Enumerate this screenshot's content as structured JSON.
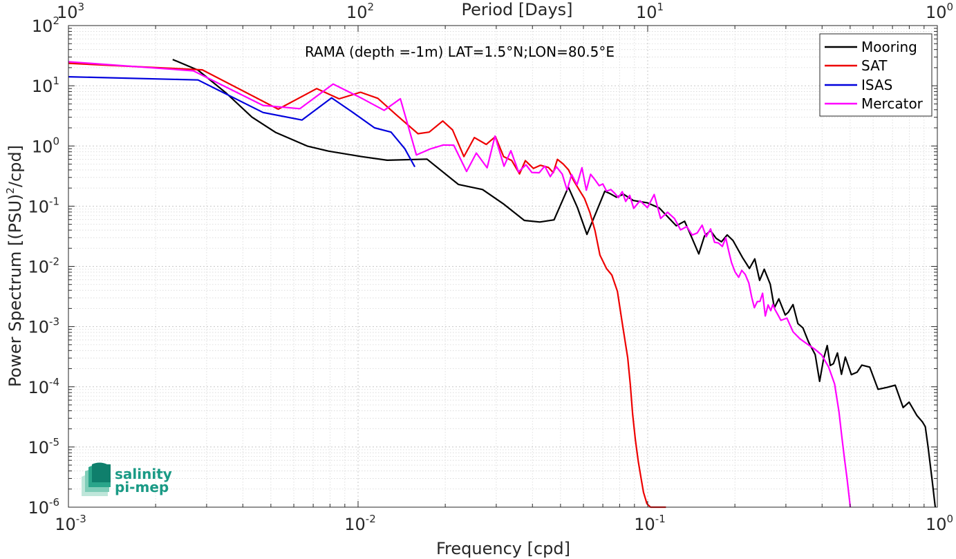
{
  "chart_data": {
    "type": "line",
    "annotation": "RAMA (depth =-1m) LAT=1.5°N;LON=80.5°E",
    "xlabel": "Frequency [cpd]",
    "ylabel_parts": [
      "Power Spectrum [(PSU)",
      "2",
      "/cpd]"
    ],
    "top_xlabel": "Period [Days]",
    "x_scale": "log",
    "y_scale": "log",
    "xlim": [
      0.001,
      1
    ],
    "ylim": [
      1e-06,
      100
    ],
    "grid": true,
    "legend_position": "top-right",
    "x_ticks": [
      {
        "base": "10",
        "exp": "-3"
      },
      {
        "base": "10",
        "exp": "-2"
      },
      {
        "base": "10",
        "exp": "-1"
      },
      {
        "base": "10",
        "exp": "0"
      }
    ],
    "top_ticks": [
      {
        "base": "10",
        "exp": "3"
      },
      {
        "base": "10",
        "exp": "2"
      },
      {
        "base": "10",
        "exp": "1"
      },
      {
        "base": "10",
        "exp": "0"
      }
    ],
    "y_ticks": [
      {
        "base": "10",
        "exp": "-6"
      },
      {
        "base": "10",
        "exp": "-5"
      },
      {
        "base": "10",
        "exp": "-4"
      },
      {
        "base": "10",
        "exp": "-3"
      },
      {
        "base": "10",
        "exp": "-2"
      },
      {
        "base": "10",
        "exp": "-1"
      },
      {
        "base": "10",
        "exp": "0"
      },
      {
        "base": "10",
        "exp": "1"
      },
      {
        "base": "10",
        "exp": "2"
      }
    ],
    "series": [
      {
        "name": "Mooring",
        "color": "#000000",
        "x": [
          0.00229,
          0.0028,
          0.0035,
          0.0043,
          0.0052,
          0.0067,
          0.0079,
          0.0103,
          0.0126,
          0.0173,
          0.0222,
          0.0269,
          0.0317,
          0.0375,
          0.0424,
          0.0475,
          0.0532,
          0.0572,
          0.0617,
          0.0661,
          0.0711,
          0.0743,
          0.078,
          0.0825,
          0.0892,
          0.0995,
          0.1097,
          0.1255,
          0.1341,
          0.1414,
          0.1501,
          0.157,
          0.1647,
          0.1725,
          0.1797,
          0.1881,
          0.197,
          0.2125,
          0.2245,
          0.2343,
          0.2434,
          0.2526,
          0.2649,
          0.2737,
          0.2837,
          0.2985,
          0.3058,
          0.3175,
          0.33,
          0.3436,
          0.3594,
          0.3787,
          0.3923,
          0.4051,
          0.4166,
          0.4268,
          0.4377,
          0.4519,
          0.4666,
          0.4813,
          0.5049,
          0.5282,
          0.5488,
          0.5843,
          0.6239,
          0.6691,
          0.7154,
          0.7617,
          0.7993,
          0.8502,
          0.8884,
          0.9087,
          0.9287,
          0.9601,
          0.9834
        ],
        "y": [
          27.3,
          18.2,
          7.61,
          3.02,
          1.67,
          0.99,
          0.822,
          0.665,
          0.58,
          0.604,
          0.23,
          0.189,
          0.11,
          0.058,
          0.0546,
          0.0592,
          0.207,
          0.095,
          0.034,
          0.0755,
          0.177,
          0.161,
          0.141,
          0.158,
          0.124,
          0.114,
          0.0932,
          0.0472,
          0.0562,
          0.0315,
          0.0161,
          0.0319,
          0.0392,
          0.0291,
          0.0256,
          0.0333,
          0.0269,
          0.014,
          0.00924,
          0.0133,
          0.00585,
          0.00894,
          0.00505,
          0.00205,
          0.00289,
          0.00156,
          0.00173,
          0.00232,
          0.00112,
          0.00095,
          0.00055,
          0.000342,
          0.000123,
          0.000297,
          0.000484,
          0.000226,
          0.000242,
          0.000365,
          0.000161,
          0.000311,
          0.000159,
          0.000175,
          0.000229,
          0.000212,
          9.09e-05,
          9.74e-05,
          0.000106,
          4.52e-05,
          5.55e-05,
          3.33e-05,
          2.6e-05,
          2.17e-05,
          1.02e-05,
          2.73e-06,
          1e-06
        ]
      },
      {
        "name": "SAT",
        "color": "#ee0000",
        "x": [
          0.001,
          0.0029,
          0.0053,
          0.0072,
          0.0086,
          0.0102,
          0.0117,
          0.0135,
          0.0161,
          0.0176,
          0.0196,
          0.0212,
          0.0232,
          0.0252,
          0.0277,
          0.0298,
          0.0318,
          0.0339,
          0.0361,
          0.0378,
          0.0403,
          0.0426,
          0.0454,
          0.0472,
          0.0488,
          0.0511,
          0.0533,
          0.0554,
          0.0579,
          0.0605,
          0.0632,
          0.0658,
          0.0684,
          0.0721,
          0.0752,
          0.0786,
          0.0817,
          0.0853,
          0.0871,
          0.0887,
          0.0907,
          0.0928,
          0.0948,
          0.0967,
          0.0994,
          0.1023,
          0.1052,
          0.1082,
          0.1112,
          0.1141,
          0.1156
        ],
        "y": [
          23.6,
          18.4,
          4.09,
          8.98,
          6.07,
          7.8,
          6.19,
          3.34,
          1.6,
          1.7,
          2.6,
          1.85,
          0.666,
          1.38,
          1.06,
          1.43,
          0.666,
          0.575,
          0.343,
          0.57,
          0.424,
          0.478,
          0.44,
          0.36,
          0.599,
          0.501,
          0.4,
          0.271,
          0.189,
          0.134,
          0.0777,
          0.0392,
          0.0154,
          0.00916,
          0.00719,
          0.00384,
          0.00114,
          0.000302,
          0.000107,
          3.51e-05,
          1.31e-05,
          5.71e-06,
          3.08e-06,
          1.77e-06,
          1.14e-06,
          1e-06,
          1e-06,
          1e-06,
          1e-06,
          1e-06,
          1e-06
        ]
      },
      {
        "name": "ISAS",
        "color": "#0000dd",
        "x": [
          0.001,
          0.0028,
          0.0047,
          0.0064,
          0.0081,
          0.0096,
          0.0114,
          0.013,
          0.0145,
          0.0157
        ],
        "y": [
          14.1,
          12.5,
          3.6,
          2.7,
          6.3,
          3.6,
          2.0,
          1.7,
          0.9,
          0.45
        ]
      },
      {
        "name": "Mercator",
        "color": "#ff00ff",
        "x": [
          0.001,
          0.0027,
          0.0047,
          0.0063,
          0.0082,
          0.0103,
          0.0123,
          0.014,
          0.0159,
          0.0177,
          0.0197,
          0.0214,
          0.0237,
          0.0256,
          0.0279,
          0.0297,
          0.0319,
          0.0337,
          0.0358,
          0.038,
          0.0398,
          0.0422,
          0.0441,
          0.0461,
          0.0484,
          0.0507,
          0.0527,
          0.0546,
          0.057,
          0.0593,
          0.0614,
          0.0635,
          0.0657,
          0.068,
          0.07,
          0.0721,
          0.0746,
          0.0769,
          0.0792,
          0.0817,
          0.0839,
          0.0867,
          0.0895,
          0.0941,
          0.0998,
          0.1053,
          0.1108,
          0.1171,
          0.1237,
          0.1299,
          0.1365,
          0.1424,
          0.1482,
          0.1541,
          0.1592,
          0.1649,
          0.1701,
          0.1754,
          0.181,
          0.186,
          0.1905,
          0.1948,
          0.2003,
          0.2061,
          0.2113,
          0.2171,
          0.2235,
          0.2286,
          0.2335,
          0.2389,
          0.2441,
          0.2492,
          0.2546,
          0.2604,
          0.2659,
          0.2704,
          0.2753,
          0.2818,
          0.2883,
          0.3025,
          0.3175,
          0.3352,
          0.3556,
          0.3766,
          0.3985,
          0.4212,
          0.442,
          0.4574,
          0.4685,
          0.4785,
          0.4875,
          0.4944,
          0.5006
        ],
        "y": [
          25.1,
          17.7,
          4.71,
          4.16,
          10.7,
          6.18,
          3.91,
          6.09,
          0.709,
          0.89,
          1.04,
          1.03,
          0.378,
          0.762,
          0.434,
          1.46,
          0.461,
          0.834,
          0.371,
          0.487,
          0.363,
          0.359,
          0.463,
          0.31,
          0.451,
          0.34,
          0.185,
          0.335,
          0.227,
          0.436,
          0.184,
          0.339,
          0.276,
          0.219,
          0.234,
          0.178,
          0.189,
          0.164,
          0.139,
          0.174,
          0.12,
          0.151,
          0.0918,
          0.123,
          0.0944,
          0.156,
          0.0626,
          0.0791,
          0.0624,
          0.0404,
          0.0458,
          0.0332,
          0.0358,
          0.0483,
          0.0311,
          0.0419,
          0.0251,
          0.0245,
          0.0214,
          0.0299,
          0.0177,
          0.0115,
          0.00808,
          0.00659,
          0.00858,
          0.00734,
          0.00531,
          0.00305,
          0.00206,
          0.0026,
          0.00262,
          0.00358,
          0.0015,
          0.00229,
          0.00184,
          0.00233,
          0.0019,
          0.00156,
          0.00127,
          0.00138,
          0.000821,
          0.000628,
          0.000512,
          0.000425,
          0.000339,
          0.000213,
          0.000111,
          3.85e-05,
          1.42e-05,
          6.06e-06,
          3.05e-06,
          1.7e-06,
          1e-06
        ]
      }
    ]
  },
  "logo": {
    "line1": "salinity",
    "line2": "pi-mep"
  }
}
